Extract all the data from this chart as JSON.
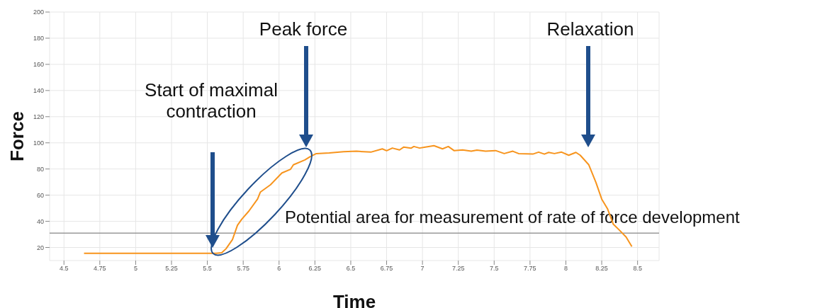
{
  "chart_data": {
    "type": "line",
    "xlabel": "Time",
    "ylabel": "Force",
    "xlim": [
      4.4,
      8.65
    ],
    "ylim": [
      10,
      200
    ],
    "xticks": [
      4.5,
      4.75,
      5,
      5.25,
      5.5,
      5.75,
      6,
      6.25,
      6.5,
      6.75,
      7,
      7.25,
      7.5,
      7.75,
      8,
      8.25,
      8.5
    ],
    "yticks": [
      20,
      40,
      60,
      80,
      100,
      120,
      140,
      160,
      180,
      200
    ],
    "grid": true,
    "legend": false,
    "marker": "none",
    "line_style": "solid",
    "series": [
      {
        "color": "#f7941d",
        "x": [
          4.64,
          5.56,
          5.6,
          5.63,
          5.675,
          5.71,
          5.74,
          5.79,
          5.85,
          5.87,
          5.94,
          6.02,
          6.08,
          6.1,
          6.18,
          6.22,
          6.26,
          6.35,
          6.45,
          6.54,
          6.64,
          6.72,
          6.75,
          6.79,
          6.84,
          6.87,
          6.92,
          6.94,
          6.98,
          7.02,
          7.08,
          7.14,
          7.18,
          7.22,
          7.28,
          7.34,
          7.38,
          7.44,
          7.51,
          7.57,
          7.63,
          7.67,
          7.77,
          7.81,
          7.85,
          7.88,
          7.92,
          7.97,
          8.02,
          8.07,
          8.1,
          8.16,
          8.21,
          8.25,
          8.29,
          8.33,
          8.37,
          8.42,
          8.46
        ],
        "values": [
          15.5,
          15.5,
          16,
          19,
          26,
          37,
          41.6,
          47.9,
          57,
          62.4,
          67.9,
          77,
          79.8,
          83.2,
          86.9,
          89.6,
          91.8,
          92.3,
          93.2,
          93.6,
          92.9,
          95.4,
          94,
          96,
          94.6,
          96.8,
          95.9,
          97.2,
          96,
          96.8,
          97.8,
          95.4,
          97.2,
          94.1,
          94.6,
          93.6,
          94.5,
          93.6,
          94.1,
          91.8,
          93.6,
          91.8,
          91.4,
          92.9,
          91.4,
          92.7,
          91.8,
          92.9,
          90.5,
          92.7,
          90.5,
          83.2,
          69.6,
          57,
          49.7,
          37.9,
          33.6,
          28,
          20.7
        ]
      }
    ],
    "ref_lines": [
      {
        "axis": "y",
        "value": 31,
        "label": "Potential area for measurement of rate of force development",
        "color": "#999999"
      }
    ],
    "annotations": [
      "Start of maximal contraction",
      "Peak force",
      "Relaxation"
    ]
  }
}
